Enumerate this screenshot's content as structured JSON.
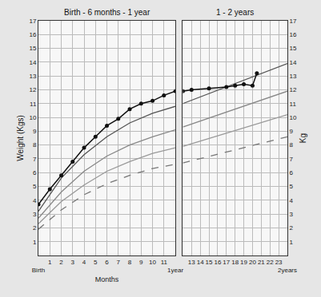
{
  "chart_data": [
    {
      "type": "line",
      "title": "Birth - 6 months - 1 year",
      "xlabel": "Months",
      "ylabel": "Weight (Kgs)",
      "xlim": [
        0,
        12
      ],
      "xticks": [
        {
          "value": 0,
          "label": "Birth"
        },
        1,
        2,
        3,
        4,
        5,
        6,
        7,
        8,
        9,
        10,
        11,
        {
          "value": 12,
          "label": "1year"
        }
      ],
      "ylim": [
        0,
        17
      ],
      "yticks": [
        1,
        2,
        3,
        4,
        5,
        6,
        7,
        8,
        9,
        10,
        11,
        12,
        13,
        14,
        15,
        16,
        17
      ],
      "grid": true,
      "series": [
        {
          "color": "#555555",
          "line_style": "solid",
          "x": [
            0,
            2,
            4,
            6,
            8,
            10,
            12
          ],
          "values": [
            3.2,
            5.6,
            7.3,
            8.6,
            9.6,
            10.3,
            10.8
          ]
        },
        {
          "color": "#888888",
          "line_style": "solid",
          "x": [
            0,
            2,
            4,
            6,
            8,
            10,
            12
          ],
          "values": [
            2.7,
            4.6,
            6.1,
            7.2,
            8.0,
            8.6,
            9.1
          ]
        },
        {
          "color": "#999999",
          "line_style": "solid",
          "x": [
            0,
            2,
            4,
            6,
            8,
            10,
            12
          ],
          "values": [
            2.3,
            3.9,
            5.1,
            6.1,
            6.8,
            7.4,
            7.8
          ]
        },
        {
          "color": "#777777",
          "line_style": "dashed",
          "x": [
            0,
            2,
            4,
            6,
            8,
            10,
            12
          ],
          "values": [
            1.9,
            3.3,
            4.4,
            5.2,
            5.8,
            6.3,
            6.6
          ]
        },
        {
          "color": "#111111",
          "line_style": "solid",
          "marker": "circle",
          "x": [
            0,
            1,
            2,
            3,
            4,
            5,
            6,
            7,
            8,
            9,
            10,
            11,
            12
          ],
          "values": [
            3.7,
            4.8,
            5.8,
            6.8,
            7.8,
            8.6,
            9.4,
            9.9,
            10.6,
            11.0,
            11.2,
            11.6,
            11.9
          ]
        }
      ]
    },
    {
      "type": "line",
      "title": "1 - 2 years",
      "ylabel": "Kg",
      "xlim": [
        12,
        24
      ],
      "xticks": [
        13,
        14,
        15,
        16,
        17,
        18,
        19,
        20,
        21,
        22,
        23,
        {
          "value": 24,
          "label": "2years"
        }
      ],
      "ylim": [
        0,
        17
      ],
      "yticks": [
        1,
        2,
        3,
        4,
        5,
        6,
        7,
        8,
        9,
        10,
        11,
        12,
        13,
        14,
        15,
        16,
        17
      ],
      "grid": true,
      "series": [
        {
          "color": "#555555",
          "line_style": "solid",
          "x": [
            12,
            24
          ],
          "values": [
            11.0,
            13.9
          ]
        },
        {
          "color": "#888888",
          "line_style": "solid",
          "x": [
            12,
            24
          ],
          "values": [
            9.3,
            11.9
          ]
        },
        {
          "color": "#999999",
          "line_style": "solid",
          "x": [
            12,
            24
          ],
          "values": [
            7.9,
            10.2
          ]
        },
        {
          "color": "#777777",
          "line_style": "dashed",
          "x": [
            12,
            24
          ],
          "values": [
            6.7,
            8.6
          ]
        },
        {
          "color": "#111111",
          "line_style": "solid",
          "marker": "circle",
          "x": [
            12,
            13,
            15,
            17,
            18,
            19,
            20,
            20.5
          ],
          "values": [
            11.9,
            12.0,
            12.1,
            12.2,
            12.3,
            12.4,
            12.3,
            13.2
          ]
        }
      ]
    }
  ]
}
